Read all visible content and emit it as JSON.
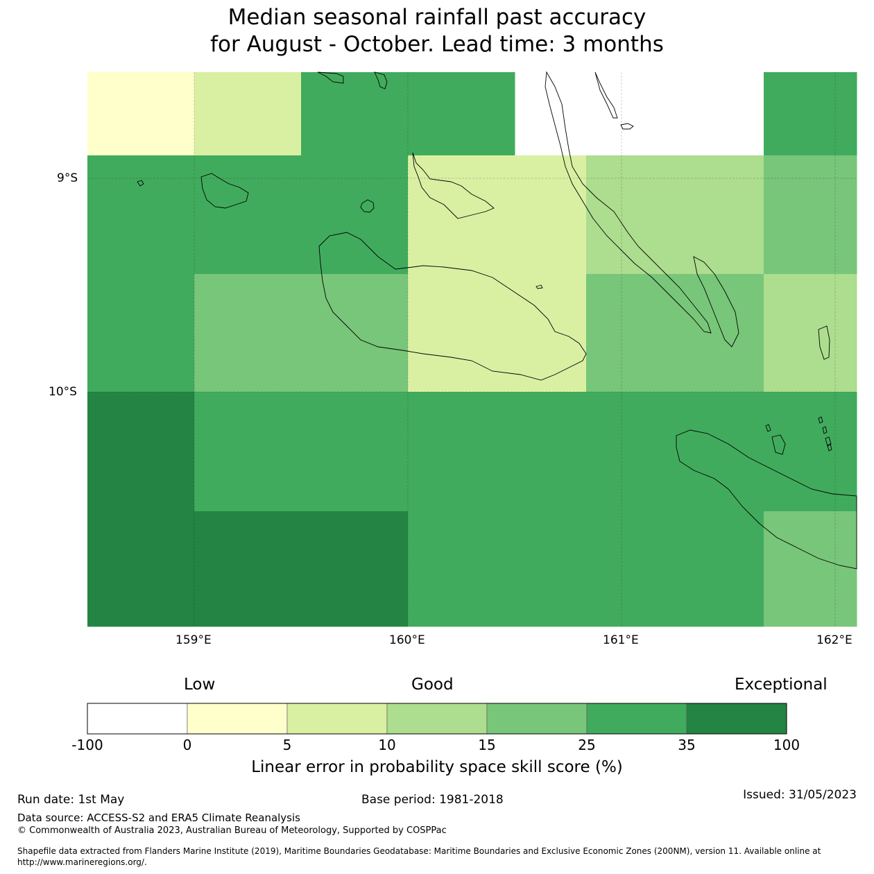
{
  "title": {
    "line1": "Median seasonal rainfall past accuracy",
    "line2": "for August - October. Lead time: 3 months"
  },
  "map": {
    "lat_labels": [
      "9°S",
      "10°S"
    ],
    "lon_labels": [
      "159°E",
      "160°E",
      "161°E",
      "162°E"
    ],
    "grid_cells": [
      {
        "row": 0,
        "cols": [
          0,
          0,
          1,
          1,
          4,
          4,
          4,
          4,
          -1,
          -1,
          -1,
          -1,
          -1,
          4
        ]
      },
      {
        "row": 1,
        "cols": [
          4,
          4,
          4,
          4,
          4,
          4,
          1,
          1,
          1,
          2,
          2,
          2,
          2,
          3
        ]
      },
      {
        "row": 2,
        "cols": [
          4,
          4,
          3,
          3,
          3,
          3,
          1,
          1,
          1,
          3,
          3,
          3,
          3,
          2
        ]
      },
      {
        "row": 3,
        "cols": [
          5,
          5,
          4,
          4,
          4,
          4,
          4,
          4,
          4,
          4,
          4,
          4,
          4,
          4
        ]
      },
      {
        "row": 4,
        "cols": [
          5,
          5,
          5,
          5,
          5,
          5,
          4,
          4,
          4,
          4,
          4,
          4,
          4,
          3
        ]
      }
    ]
  },
  "colorbar": {
    "categories": [
      "Low",
      "Good",
      "Exceptional"
    ],
    "ticks": [
      "-100",
      "0",
      "5",
      "10",
      "15",
      "25",
      "35",
      "100"
    ],
    "colors": [
      "#ffffff",
      "#ffffcc",
      "#d9f0a3",
      "#addd8e",
      "#78c679",
      "#41ab5d",
      "#238443"
    ],
    "label": "Linear error in probability space skill score (%)"
  },
  "footer": {
    "run_date": "Run date: 1st May",
    "base_period": "Base period: 1981-2018",
    "issued": "Issued: 31/05/2023",
    "data_source": "Data source: ACCESS-S2 and ERA5 Climate Reanalysis",
    "copyright": "© Commonwealth of Australia 2023, Australian Bureau of Meteorology, Supported by COSPPac",
    "shapefile_line1": "Shapefile data extracted from Flanders Marine Institute (2019), Maritime Boundaries Geodatabase: Maritime Boundaries and Exclusive Economic Zones (200NM), version 11. Available online at",
    "shapefile_line2": "http://www.marineregions.org/."
  }
}
